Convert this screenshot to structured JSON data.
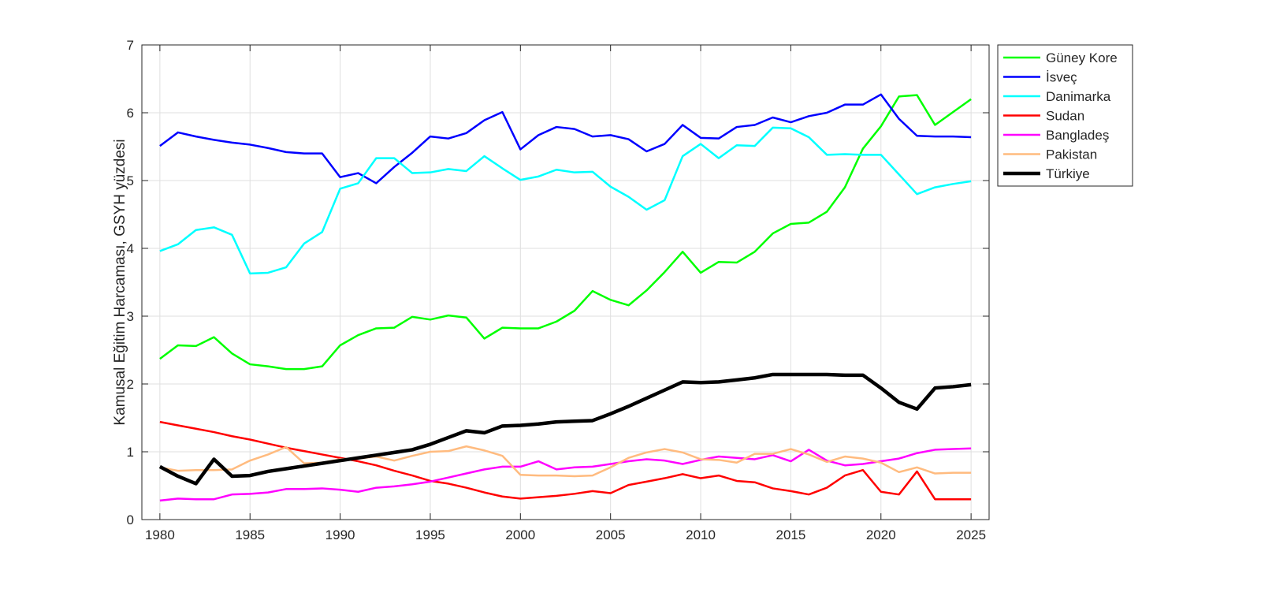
{
  "chart_data": {
    "type": "line",
    "title": "",
    "xlabel": "",
    "ylabel": "Kamusal Eğitim Harcaması, GSYH yüzdesi",
    "xlim": [
      1979,
      2026
    ],
    "ylim": [
      0,
      7
    ],
    "xticks": [
      1980,
      1985,
      1990,
      1995,
      2000,
      2005,
      2010,
      2015,
      2020,
      2025
    ],
    "yticks": [
      0,
      1,
      2,
      3,
      4,
      5,
      6,
      7
    ],
    "grid": true,
    "legend_position": "outside-top-right",
    "x": [
      1980,
      1981,
      1982,
      1983,
      1984,
      1985,
      1986,
      1987,
      1988,
      1989,
      1990,
      1991,
      1992,
      1993,
      1994,
      1995,
      1996,
      1997,
      1998,
      1999,
      2000,
      2001,
      2002,
      2003,
      2004,
      2005,
      2006,
      2007,
      2008,
      2009,
      2010,
      2011,
      2012,
      2013,
      2014,
      2015,
      2016,
      2017,
      2018,
      2019,
      2020,
      2021,
      2022,
      2023,
      2024,
      2025
    ],
    "series": [
      {
        "name": "Güney Kore",
        "color": "#00ff00",
        "width": 2.5,
        "values": [
          2.37,
          2.57,
          2.56,
          2.69,
          2.45,
          2.29,
          2.26,
          2.22,
          2.22,
          2.26,
          2.57,
          2.72,
          2.82,
          2.83,
          2.99,
          2.95,
          3.01,
          2.98,
          2.67,
          2.83,
          2.82,
          2.82,
          2.92,
          3.08,
          3.37,
          3.24,
          3.16,
          3.38,
          3.65,
          3.95,
          3.64,
          3.8,
          3.79,
          3.95,
          4.22,
          4.36,
          4.38,
          4.54,
          4.9,
          5.47,
          5.8,
          6.24,
          6.26,
          5.82,
          6.01,
          6.2
        ]
      },
      {
        "name": "İsveç",
        "color": "#0000ff",
        "width": 2.5,
        "values": [
          5.51,
          5.71,
          5.65,
          5.6,
          5.56,
          5.53,
          5.48,
          5.42,
          5.4,
          5.4,
          5.05,
          5.11,
          4.96,
          5.2,
          5.41,
          5.65,
          5.62,
          5.7,
          5.89,
          6.01,
          5.46,
          5.67,
          5.79,
          5.76,
          5.65,
          5.67,
          5.61,
          5.43,
          5.54,
          5.82,
          5.63,
          5.62,
          5.79,
          5.82,
          5.93,
          5.86,
          5.95,
          6.0,
          6.12,
          6.12,
          6.27,
          5.91,
          5.66,
          5.65,
          5.65,
          5.64
        ]
      },
      {
        "name": "Danimarka",
        "color": "#00ffff",
        "width": 2.5,
        "values": [
          3.96,
          4.06,
          4.27,
          4.31,
          4.2,
          3.63,
          3.64,
          3.72,
          4.07,
          4.24,
          4.88,
          4.96,
          5.33,
          5.33,
          5.11,
          5.12,
          5.17,
          5.14,
          5.36,
          5.18,
          5.01,
          5.06,
          5.16,
          5.12,
          5.13,
          4.91,
          4.76,
          4.57,
          4.71,
          5.36,
          5.54,
          5.33,
          5.52,
          5.51,
          5.78,
          5.77,
          5.64,
          5.38,
          5.39,
          5.38,
          5.38,
          5.09,
          4.8,
          4.9,
          4.95,
          4.99
        ]
      },
      {
        "name": "Sudan",
        "color": "#ff0000",
        "width": 2.5,
        "values": [
          1.44,
          1.39,
          1.34,
          1.29,
          1.23,
          1.18,
          1.12,
          1.06,
          1.01,
          0.96,
          0.91,
          0.86,
          0.8,
          0.72,
          0.65,
          0.57,
          0.53,
          0.47,
          0.4,
          0.34,
          0.31,
          0.33,
          0.35,
          0.38,
          0.42,
          0.39,
          0.51,
          0.56,
          0.61,
          0.67,
          0.61,
          0.65,
          0.57,
          0.55,
          0.46,
          0.42,
          0.37,
          0.47,
          0.65,
          0.73,
          0.41,
          0.37,
          0.71,
          0.3,
          0.3,
          0.3
        ]
      },
      {
        "name": "Bangladeş",
        "color": "#ff00ff",
        "width": 2.5,
        "values": [
          0.28,
          0.31,
          0.3,
          0.3,
          0.37,
          0.38,
          0.4,
          0.45,
          0.45,
          0.46,
          0.44,
          0.41,
          0.47,
          0.49,
          0.52,
          0.56,
          0.62,
          0.68,
          0.74,
          0.78,
          0.78,
          0.86,
          0.74,
          0.77,
          0.78,
          0.82,
          0.86,
          0.89,
          0.87,
          0.82,
          0.88,
          0.93,
          0.91,
          0.89,
          0.95,
          0.86,
          1.03,
          0.87,
          0.8,
          0.82,
          0.86,
          0.9,
          0.98,
          1.03,
          1.04,
          1.05
        ]
      },
      {
        "name": "Pakistan",
        "color": "#ffbb7f",
        "width": 2.5,
        "values": [
          0.77,
          0.72,
          0.73,
          0.73,
          0.74,
          0.87,
          0.96,
          1.07,
          0.83,
          0.84,
          0.89,
          0.9,
          0.93,
          0.87,
          0.94,
          1.0,
          1.01,
          1.08,
          1.02,
          0.94,
          0.66,
          0.65,
          0.65,
          0.64,
          0.65,
          0.77,
          0.91,
          0.99,
          1.04,
          0.99,
          0.89,
          0.88,
          0.84,
          0.97,
          0.97,
          1.04,
          0.96,
          0.85,
          0.93,
          0.9,
          0.84,
          0.7,
          0.77,
          0.68,
          0.69,
          0.69
        ]
      },
      {
        "name": "Türkiye",
        "color": "#000000",
        "width": 4.5,
        "values": [
          0.78,
          0.64,
          0.53,
          0.89,
          0.64,
          0.65,
          0.71,
          0.75,
          0.79,
          0.83,
          0.87,
          0.91,
          0.95,
          0.99,
          1.03,
          1.11,
          1.21,
          1.31,
          1.28,
          1.38,
          1.39,
          1.41,
          1.44,
          1.45,
          1.46,
          1.56,
          1.67,
          1.79,
          1.91,
          2.03,
          2.02,
          2.03,
          2.06,
          2.09,
          2.14,
          2.14,
          2.14,
          2.14,
          2.13,
          2.13,
          1.94,
          1.73,
          1.63,
          1.94,
          1.96,
          1.99
        ]
      }
    ]
  }
}
